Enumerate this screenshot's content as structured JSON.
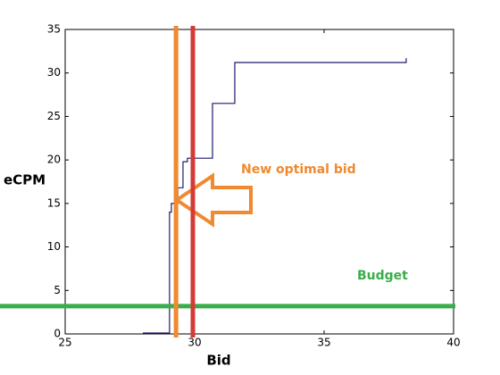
{
  "chart_data": {
    "type": "line",
    "xlabel": "Bid",
    "ylabel": "eCPM",
    "x": [
      28,
      29.03,
      29.03,
      29.1,
      29.1,
      29.35,
      29.35,
      29.55,
      29.55,
      29.72,
      29.72,
      30.69,
      30.69,
      31.55,
      31.55,
      38.17,
      38.17
    ],
    "series": [
      {
        "color": "#1a1a6e",
        "values": [
          0.1,
          0.1,
          14,
          14,
          15,
          15,
          16.8,
          16.8,
          19.8,
          19.8,
          20.2,
          20.2,
          26.5,
          26.5,
          31.2,
          31.2,
          31.7
        ]
      }
    ],
    "xlim": [
      25,
      40
    ],
    "xticks": [
      25,
      30,
      35,
      40
    ],
    "ylim": [
      0,
      35
    ],
    "yticks": [
      0,
      5,
      10,
      15,
      20,
      25,
      30,
      35
    ],
    "vlines": [
      {
        "value": 29.28,
        "color": "#f0892f",
        "label": "New optimal bid"
      },
      {
        "value": 29.93,
        "color": "#d63a36"
      }
    ],
    "hlines": [
      {
        "value": 3.2,
        "color": "#3aae4a",
        "label": "Budget"
      }
    ]
  }
}
